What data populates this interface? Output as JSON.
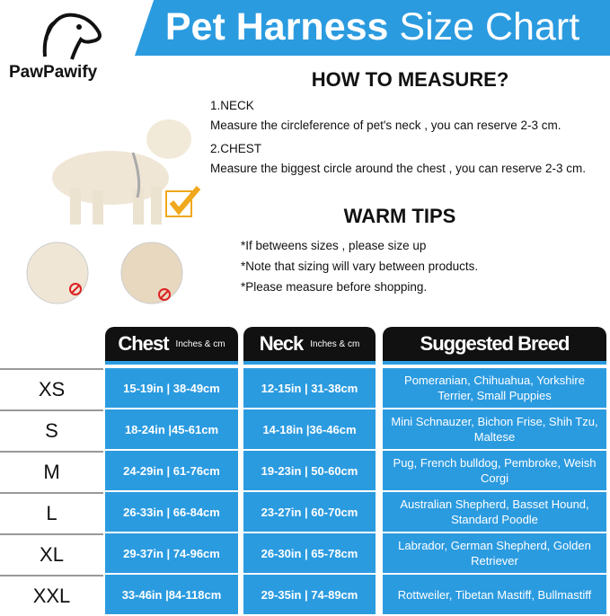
{
  "brand": {
    "logo": "PawPawify"
  },
  "banner": {
    "title_bold": "Pet Harness",
    "title_rest": "Size Chart",
    "color": "#2b9be0"
  },
  "measure": {
    "heading": "HOW TO MEASURE?",
    "neck_title": "1.NECK",
    "neck_text": "Measure the circleference of pet's neck , you can reserve 2-3 cm.",
    "chest_title": "2.CHEST",
    "chest_text": "Measure the biggest circle around the chest , you can reserve 2-3 cm."
  },
  "tips": {
    "heading": "WARM TIPS",
    "items": [
      "*If betweens sizes , please size up",
      "*Note that sizing will vary between products.",
      "*Please measure before shopping."
    ]
  },
  "table": {
    "headers": {
      "chest": "Chest",
      "chest_unit": "Inches & cm",
      "neck": "Neck",
      "neck_unit": "Inches & cm",
      "breed": "Suggested Breed"
    },
    "rows": [
      {
        "size": "XS",
        "chest": "15-19in | 38-49cm",
        "neck": "12-15in | 31-38cm",
        "breed": "Pomeranian, Chihuahua, Yorkshire Terrier, Small Puppies"
      },
      {
        "size": "S",
        "chest": "18-24in |45-61cm",
        "neck": "14-18in |36-46cm",
        "breed": "Mini Schnauzer, Bichon Frise, Shih Tzu, Maltese"
      },
      {
        "size": "M",
        "chest": "24-29in | 61-76cm",
        "neck": "19-23in | 50-60cm",
        "breed": "Pug, French bulldog, Pembroke, Weish Corgi"
      },
      {
        "size": "L",
        "chest": "26-33in | 66-84cm",
        "neck": "23-27in | 60-70cm",
        "breed": "Australian Shepherd, Basset Hound, Standard Poodle"
      },
      {
        "size": "XL",
        "chest": "29-37in | 74-96cm",
        "neck": "26-30in | 65-78cm",
        "breed": "Labrador, German Shepherd, Golden Retriever"
      },
      {
        "size": "XXL",
        "chest": "33-46in |84-118cm",
        "neck": "29-35in | 74-89cm",
        "breed": "Rottweiler, Tibetan Mastiff, Bullmastiff"
      }
    ]
  }
}
